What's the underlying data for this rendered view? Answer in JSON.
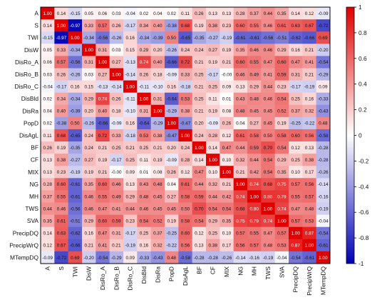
{
  "chart_data": {
    "type": "heatmap",
    "variables": [
      "A",
      "S",
      "TWI",
      "DisW",
      "DisRo_A",
      "DisRo_B",
      "DisRo_C",
      "DisBld",
      "DisRa",
      "PopD",
      "DisAgL",
      "BF",
      "CF",
      "MIX",
      "NG",
      "MH",
      "TWS",
      "SVA",
      "PrecipDQ",
      "PrecipWrQ",
      "MTempDQ"
    ],
    "values": [
      [
        1.0,
        0.14,
        -0.15,
        0.05,
        0.06,
        0.03,
        -0.04,
        0.02,
        0.04,
        0.02,
        0.11,
        0.26,
        0.13,
        0.13,
        0.28,
        0.37,
        0.44,
        0.35,
        0.14,
        0.12,
        -0.09
      ],
      [
        0.14,
        1.0,
        -0.97,
        0.33,
        0.57,
        0.26,
        -0.17,
        0.34,
        0.4,
        -0.38,
        0.68,
        0.19,
        0.38,
        0.23,
        0.6,
        0.55,
        0.46,
        0.61,
        0.63,
        0.67,
        -0.72
      ],
      [
        -0.15,
        -0.97,
        1.0,
        -0.34,
        -0.56,
        -0.26,
        0.16,
        -0.34,
        -0.39,
        0.5,
        -0.65,
        -0.35,
        -0.27,
        -0.19,
        -0.61,
        -0.61,
        -0.56,
        -0.51,
        -0.62,
        -0.66,
        0.69
      ],
      [
        0.05,
        0.33,
        -0.34,
        1.0,
        0.31,
        0.03,
        0.15,
        0.29,
        0.2,
        -0.26,
        0.24,
        0.24,
        0.27,
        0.19,
        0.35,
        0.46,
        0.46,
        0.29,
        0.16,
        0.21,
        -0.2
      ],
      [
        0.06,
        0.57,
        -0.56,
        0.31,
        1.0,
        0.27,
        -0.13,
        0.74,
        0.4,
        -0.66,
        0.72,
        0.21,
        0.19,
        0.21,
        0.6,
        0.55,
        0.47,
        0.6,
        0.47,
        0.41,
        -0.54
      ],
      [
        0.03,
        0.26,
        -0.26,
        0.03,
        0.27,
        1.0,
        -0.14,
        0.26,
        0.18,
        -0.09,
        0.33,
        0.25,
        -0.17,
        -0.0,
        0.46,
        0.49,
        0.41,
        0.59,
        0.31,
        0.21,
        -0.29
      ],
      [
        -0.04,
        -0.17,
        0.16,
        0.15,
        -0.13,
        -0.14,
        1.0,
        -0.11,
        -0.1,
        0.16,
        -0.18,
        0.21,
        0.25,
        0.09,
        0.13,
        0.29,
        0.44,
        0.23,
        -0.17,
        -0.19,
        0.09
      ],
      [
        0.02,
        0.34,
        -0.34,
        0.29,
        0.74,
        0.26,
        -0.11,
        1.0,
        0.31,
        -0.64,
        0.53,
        0.25,
        0.11,
        0.01,
        0.43,
        0.48,
        0.46,
        0.54,
        0.25,
        0.16,
        -0.33
      ],
      [
        0.04,
        0.4,
        -0.39,
        0.2,
        0.4,
        0.18,
        -0.1,
        0.31,
        1.0,
        -0.29,
        0.38,
        0.21,
        0.19,
        0.08,
        0.48,
        0.45,
        0.45,
        0.52,
        0.37,
        0.32,
        -0.43
      ],
      [
        0.02,
        -0.38,
        0.5,
        -0.26,
        -0.66,
        -0.09,
        0.16,
        -0.64,
        -0.29,
        1.0,
        -0.47,
        0.2,
        -0.09,
        0.26,
        0.04,
        0.27,
        0.45,
        0.19,
        -0.25,
        -0.22,
        0.48
      ],
      [
        0.11,
        0.68,
        -0.65,
        0.24,
        0.72,
        0.33,
        -0.18,
        0.53,
        0.38,
        -0.47,
        1.0,
        0.24,
        0.28,
        0.12,
        0.61,
        0.58,
        0.5,
        0.58,
        0.6,
        0.56,
        -0.58
      ],
      [
        0.26,
        0.19,
        -0.35,
        0.24,
        0.21,
        0.25,
        0.21,
        0.25,
        0.21,
        0.2,
        0.24,
        1.0,
        0.14,
        0.47,
        0.44,
        0.59,
        0.7,
        0.54,
        0.12,
        0.13,
        -0.28
      ],
      [
        0.13,
        0.38,
        -0.27,
        0.27,
        0.19,
        -0.17,
        0.25,
        0.11,
        0.19,
        -0.09,
        0.28,
        0.14,
        1.0,
        0.1,
        0.32,
        0.44,
        0.54,
        0.29,
        0.25,
        0.38,
        -0.28
      ],
      [
        0.13,
        0.23,
        -0.19,
        0.19,
        0.21,
        -0.0,
        0.09,
        0.01,
        0.08,
        0.26,
        0.12,
        0.47,
        0.1,
        1.0,
        0.21,
        0.42,
        0.54,
        0.35,
        0.1,
        0.17,
        -0.26
      ],
      [
        0.28,
        0.6,
        -0.61,
        0.35,
        0.6,
        0.46,
        0.13,
        0.43,
        0.48,
        0.04,
        0.61,
        0.44,
        0.32,
        0.21,
        1.0,
        0.74,
        0.68,
        0.75,
        0.57,
        0.56,
        -0.14
      ],
      [
        0.37,
        0.55,
        -0.61,
        0.46,
        0.55,
        0.49,
        0.29,
        0.48,
        0.45,
        0.27,
        0.58,
        0.59,
        0.44,
        0.42,
        0.74,
        1.0,
        0.8,
        0.79,
        0.55,
        0.57,
        -0.16
      ],
      [
        0.44,
        0.46,
        -0.56,
        0.46,
        0.47,
        0.41,
        0.44,
        0.46,
        0.45,
        0.45,
        0.5,
        0.7,
        0.54,
        0.54,
        0.68,
        0.8,
        1.0,
        0.74,
        0.47,
        0.48,
        -0.19
      ],
      [
        0.35,
        0.61,
        -0.51,
        0.29,
        0.6,
        0.59,
        0.23,
        0.54,
        0.52,
        0.19,
        0.58,
        0.54,
        0.29,
        0.35,
        0.75,
        0.79,
        0.74,
        1.0,
        0.57,
        0.53,
        -0.04
      ],
      [
        0.14,
        0.63,
        -0.62,
        0.16,
        0.47,
        0.31,
        -0.17,
        0.25,
        0.37,
        -0.25,
        0.6,
        0.12,
        0.25,
        0.1,
        0.57,
        0.55,
        0.47,
        0.57,
        1.0,
        0.87,
        -0.54
      ],
      [
        0.12,
        0.67,
        -0.66,
        0.21,
        0.41,
        0.21,
        -0.19,
        0.16,
        0.32,
        -0.22,
        0.56,
        0.13,
        0.38,
        0.17,
        0.56,
        0.57,
        0.48,
        0.53,
        0.87,
        1.0,
        -0.61
      ],
      [
        -0.09,
        -0.72,
        0.69,
        -0.2,
        -0.54,
        -0.29,
        0.09,
        -0.33,
        -0.43,
        0.48,
        -0.58,
        -0.28,
        -0.28,
        -0.26,
        -0.14,
        -0.16,
        -0.19,
        -0.04,
        -0.54,
        -0.61,
        1.0
      ]
    ],
    "colorbar": {
      "range": [
        -1,
        1
      ],
      "ticks": [
        "1",
        "0.8",
        "0.6",
        "0.4",
        "0.2",
        "0",
        "-0.2",
        "-0.4",
        "-0.6",
        "-0.8",
        "-1"
      ],
      "colors": {
        "negative": "#0000b4",
        "neutral": "#ffffff",
        "positive": "#e10000"
      }
    },
    "title": "",
    "xlabel": "",
    "ylabel": ""
  }
}
